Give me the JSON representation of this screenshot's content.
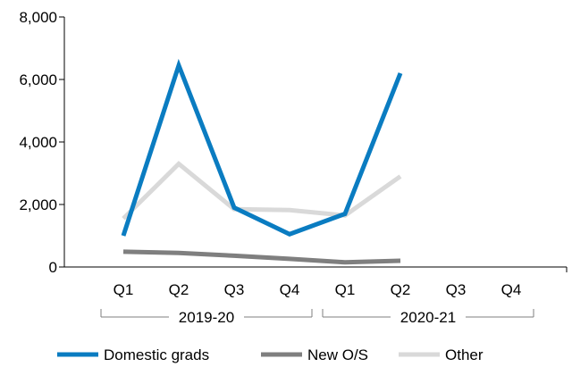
{
  "chart_data": {
    "type": "line",
    "categories": [
      "Q1",
      "Q2",
      "Q3",
      "Q4",
      "Q1",
      "Q2",
      "Q3",
      "Q4"
    ],
    "groups": [
      {
        "label": "2019-20",
        "span": [
          0,
          3
        ]
      },
      {
        "label": "2020-21",
        "span": [
          4,
          7
        ]
      }
    ],
    "series": [
      {
        "name": "Domestic grads",
        "color": "#0a7cc1",
        "values": [
          1000,
          6450,
          1900,
          1050,
          1700,
          6200,
          null,
          null
        ]
      },
      {
        "name": "New O/S",
        "color": "#7f7f7f",
        "values": [
          490,
          450,
          360,
          260,
          150,
          200,
          null,
          null
        ]
      },
      {
        "name": "Other",
        "color": "#d9d9d9",
        "values": [
          1550,
          3300,
          1850,
          1820,
          1650,
          2900,
          null,
          null
        ]
      }
    ],
    "ylim": [
      0,
      8000
    ],
    "yticks": [
      "0",
      "2,000",
      "4,000",
      "6,000",
      "8,000"
    ],
    "ytick_values": [
      0,
      2000,
      4000,
      6000,
      8000
    ],
    "grid": false,
    "legend_position": "bottom"
  }
}
